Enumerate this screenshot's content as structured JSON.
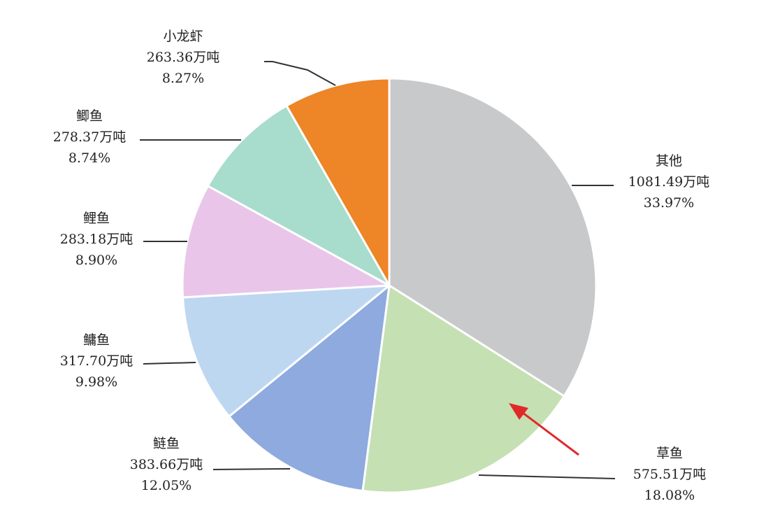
{
  "chart_data": {
    "type": "pie",
    "title": "",
    "unit": "万吨",
    "slices": [
      {
        "name": "其他",
        "value": 1081.49,
        "value_text": "1081.49万吨",
        "percent": 33.97,
        "percent_text": "33.97%",
        "color": "#c8c9cb"
      },
      {
        "name": "草鱼",
        "value": 575.51,
        "value_text": "575.51万吨",
        "percent": 18.08,
        "percent_text": "18.08%",
        "color": "#c5e0b3"
      },
      {
        "name": "鲢鱼",
        "value": 383.66,
        "value_text": "383.66万吨",
        "percent": 12.05,
        "percent_text": "12.05%",
        "color": "#8eaadf"
      },
      {
        "name": "鳙鱼",
        "value": 317.7,
        "value_text": "317.70万吨",
        "percent": 9.98,
        "percent_text": "9.98%",
        "color": "#bdd7f1"
      },
      {
        "name": "鲤鱼",
        "value": 283.18,
        "value_text": "283.18万吨",
        "percent": 8.9,
        "percent_text": "8.90%",
        "color": "#eac5ea"
      },
      {
        "name": "鲫鱼",
        "value": 278.37,
        "value_text": "278.37万吨",
        "percent": 8.74,
        "percent_text": "8.74%",
        "color": "#a8dccd"
      },
      {
        "name": "小龙虾",
        "value": 263.36,
        "value_text": "263.36万吨",
        "percent": 8.27,
        "percent_text": "8.27%",
        "color": "#ee8526"
      }
    ],
    "start_angle_deg": 0,
    "direction": "clockwise",
    "highlight": {
      "slice": "草鱼",
      "marker": "red-arrow",
      "color": "#e02a2a"
    }
  }
}
